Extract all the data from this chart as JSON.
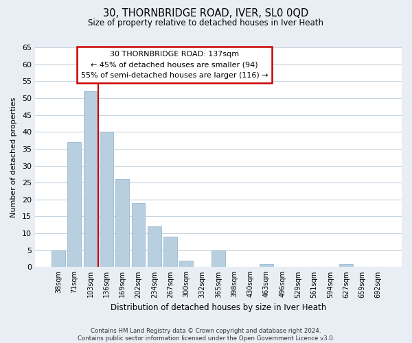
{
  "title": "30, THORNBRIDGE ROAD, IVER, SL0 0QD",
  "subtitle": "Size of property relative to detached houses in Iver Heath",
  "bar_labels": [
    "38sqm",
    "71sqm",
    "103sqm",
    "136sqm",
    "169sqm",
    "202sqm",
    "234sqm",
    "267sqm",
    "300sqm",
    "332sqm",
    "365sqm",
    "398sqm",
    "430sqm",
    "463sqm",
    "496sqm",
    "529sqm",
    "561sqm",
    "594sqm",
    "627sqm",
    "659sqm",
    "692sqm"
  ],
  "bar_values": [
    5,
    37,
    52,
    40,
    26,
    19,
    12,
    9,
    2,
    0,
    5,
    0,
    0,
    1,
    0,
    0,
    0,
    0,
    1,
    0,
    0
  ],
  "bar_color": "#b8cfe0",
  "bar_edge_color": "#9ab8cf",
  "vline_bar_index": 2,
  "vline_color": "#cc0000",
  "ylabel": "Number of detached properties",
  "xlabel": "Distribution of detached houses by size in Iver Heath",
  "ylim": [
    0,
    65
  ],
  "yticks": [
    0,
    5,
    10,
    15,
    20,
    25,
    30,
    35,
    40,
    45,
    50,
    55,
    60,
    65
  ],
  "annotation_title": "30 THORNBRIDGE ROAD: 137sqm",
  "annotation_line1": "← 45% of detached houses are smaller (94)",
  "annotation_line2": "55% of semi-detached houses are larger (116) →",
  "footer_line1": "Contains HM Land Registry data © Crown copyright and database right 2024.",
  "footer_line2": "Contains public sector information licensed under the Open Government Licence v3.0.",
  "bg_color": "#e8eef4",
  "plot_bg_color": "#ffffff",
  "grid_color": "#c8d4de"
}
